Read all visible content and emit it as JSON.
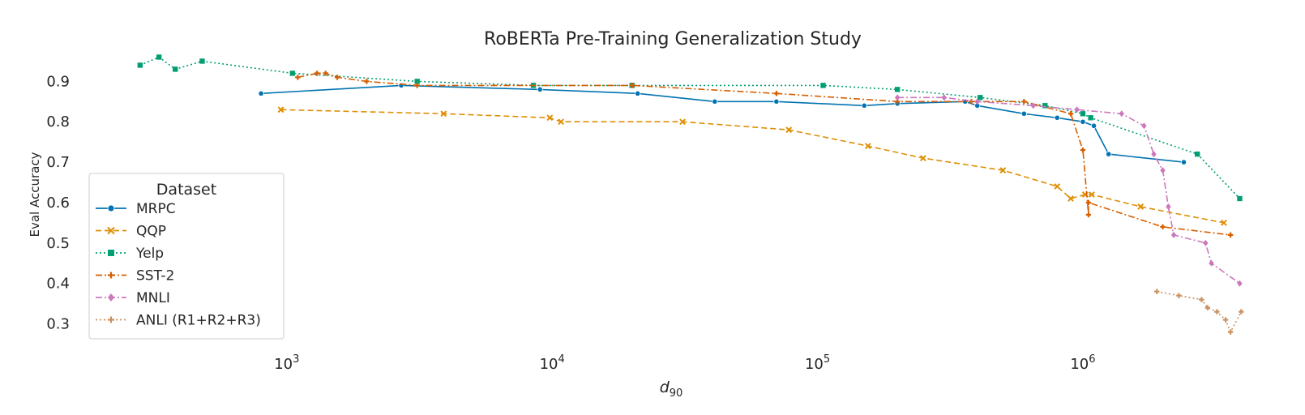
{
  "chart_data": {
    "type": "line",
    "title": "RoBERTa Pre-Training Generalization Study",
    "xlabel": "d",
    "xlabel_sub": "90",
    "ylabel": "Eval Accuracy",
    "x_scale": "log",
    "xlim": [
      180,
      4200000
    ],
    "ylim": [
      0.255,
      0.985
    ],
    "x_ticks": [
      {
        "value": 1000,
        "base": "10",
        "exp": "3"
      },
      {
        "value": 10000,
        "base": "10",
        "exp": "4"
      },
      {
        "value": 100000,
        "base": "10",
        "exp": "5"
      },
      {
        "value": 1000000,
        "base": "10",
        "exp": "6"
      }
    ],
    "y_ticks": [
      {
        "value": 0.3,
        "label": "0.3"
      },
      {
        "value": 0.4,
        "label": "0.4"
      },
      {
        "value": 0.5,
        "label": "0.5"
      },
      {
        "value": 0.6,
        "label": "0.6"
      },
      {
        "value": 0.7,
        "label": "0.7"
      },
      {
        "value": 0.8,
        "label": "0.8"
      },
      {
        "value": 0.9,
        "label": "0.9"
      }
    ],
    "grid": false,
    "legend": {
      "title": "Dataset",
      "placement": "lower-left"
    },
    "series": [
      {
        "name": "MRPC",
        "color": "#0173b2",
        "dash": "",
        "marker": "circle",
        "points": [
          [
            800,
            0.87
          ],
          [
            2700,
            0.89
          ],
          [
            9000,
            0.88
          ],
          [
            21000,
            0.87
          ],
          [
            41000,
            0.85
          ],
          [
            70000,
            0.85
          ],
          [
            150000,
            0.84
          ],
          [
            200000,
            0.845
          ],
          [
            360000,
            0.85
          ],
          [
            400000,
            0.84
          ],
          [
            600000,
            0.82
          ],
          [
            800000,
            0.81
          ],
          [
            1000000,
            0.8
          ],
          [
            1100000,
            0.79
          ],
          [
            1250000,
            0.72
          ],
          [
            2400000,
            0.7
          ]
        ]
      },
      {
        "name": "QQP",
        "color": "#de8f05",
        "dash": "7,4",
        "marker": "x",
        "points": [
          [
            950,
            0.83
          ],
          [
            3900,
            0.82
          ],
          [
            9800,
            0.81
          ],
          [
            10800,
            0.8
          ],
          [
            31000,
            0.8
          ],
          [
            78000,
            0.78
          ],
          [
            155000,
            0.74
          ],
          [
            250000,
            0.71
          ],
          [
            500000,
            0.68
          ],
          [
            800000,
            0.64
          ],
          [
            900000,
            0.61
          ],
          [
            1020000,
            0.62
          ],
          [
            1080000,
            0.62
          ],
          [
            1650000,
            0.59
          ],
          [
            3400000,
            0.55
          ]
        ]
      },
      {
        "name": "Yelp",
        "color": "#029e73",
        "dash": "2,3",
        "marker": "square",
        "points": [
          [
            280,
            0.94
          ],
          [
            330,
            0.96
          ],
          [
            380,
            0.93
          ],
          [
            480,
            0.95
          ],
          [
            1050,
            0.92
          ],
          [
            3100,
            0.9
          ],
          [
            8500,
            0.89
          ],
          [
            20000,
            0.89
          ],
          [
            105000,
            0.89
          ],
          [
            200000,
            0.88
          ],
          [
            410000,
            0.86
          ],
          [
            720000,
            0.84
          ],
          [
            1000000,
            0.82
          ],
          [
            1070000,
            0.81
          ],
          [
            2700000,
            0.72
          ],
          [
            3900000,
            0.61
          ]
        ]
      },
      {
        "name": "SST-2",
        "color": "#d55e00",
        "dash": "8,3,2,3",
        "marker": "plus",
        "points": [
          [
            1100,
            0.91
          ],
          [
            1300,
            0.92
          ],
          [
            1400,
            0.92
          ],
          [
            1550,
            0.91
          ],
          [
            2000,
            0.9
          ],
          [
            3100,
            0.89
          ],
          [
            20000,
            0.89
          ],
          [
            70000,
            0.87
          ],
          [
            200000,
            0.85
          ],
          [
            380000,
            0.85
          ],
          [
            600000,
            0.85
          ],
          [
            900000,
            0.82
          ],
          [
            1000000,
            0.73
          ],
          [
            1050000,
            0.57
          ],
          [
            1050000,
            0.6
          ],
          [
            2000000,
            0.54
          ],
          [
            3600000,
            0.52
          ]
        ]
      },
      {
        "name": "MNLI",
        "color": "#cc78bc",
        "dash": "8,3,2,3",
        "marker": "diamond",
        "points": [
          [
            200000,
            0.86
          ],
          [
            300000,
            0.86
          ],
          [
            400000,
            0.85
          ],
          [
            650000,
            0.84
          ],
          [
            950000,
            0.83
          ],
          [
            1400000,
            0.82
          ],
          [
            1700000,
            0.79
          ],
          [
            1850000,
            0.72
          ],
          [
            2000000,
            0.68
          ],
          [
            2100000,
            0.59
          ],
          [
            2200000,
            0.52
          ],
          [
            2900000,
            0.5
          ],
          [
            3050000,
            0.45
          ],
          [
            3900000,
            0.4
          ]
        ]
      },
      {
        "name": "ANLI (R1+R2+R3)",
        "color": "#ca9161",
        "dash": "2,3",
        "marker": "plus",
        "points": [
          [
            1900000,
            0.38
          ],
          [
            2300000,
            0.37
          ],
          [
            2800000,
            0.36
          ],
          [
            2950000,
            0.34
          ],
          [
            3200000,
            0.33
          ],
          [
            3450000,
            0.31
          ],
          [
            3600000,
            0.28
          ],
          [
            3950000,
            0.33
          ]
        ]
      }
    ]
  }
}
